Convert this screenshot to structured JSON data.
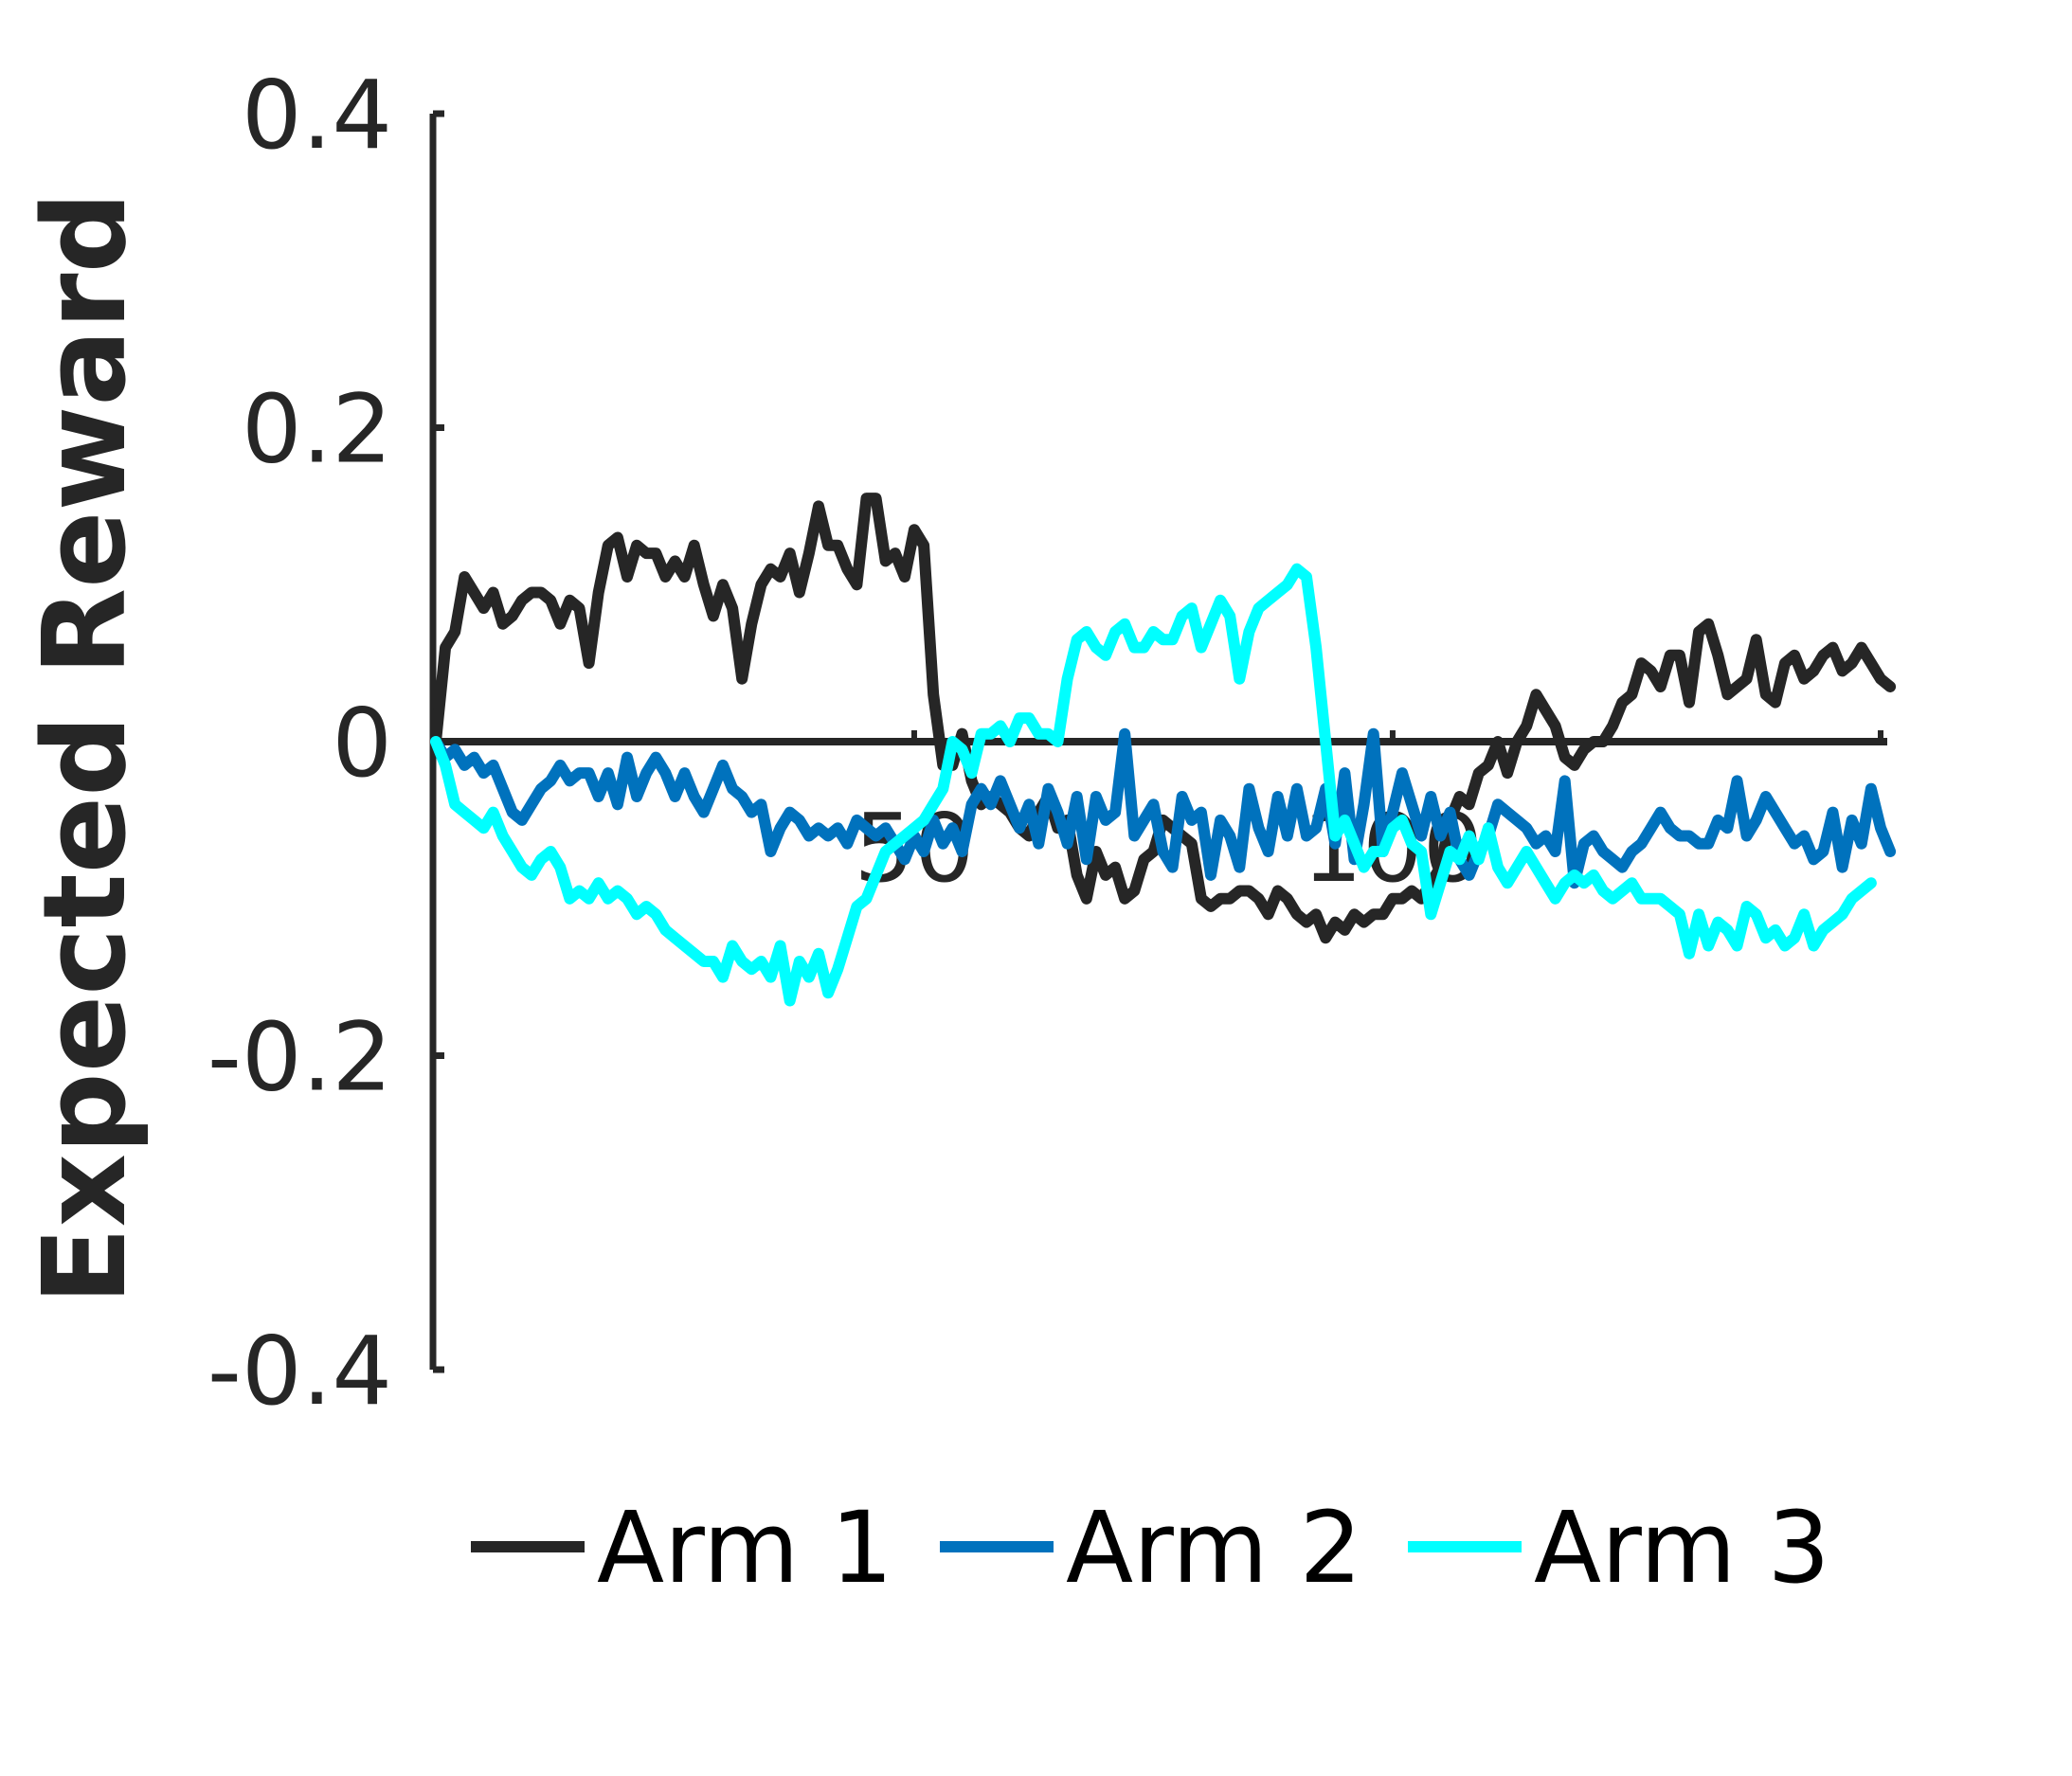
{
  "chart_data": {
    "type": "line",
    "ylabel": "Expected Reward",
    "xlabel": "",
    "xlim": [
      0,
      151
    ],
    "ylim": [
      -0.4,
      0.4
    ],
    "x_ticks": [
      0,
      50,
      100,
      151
    ],
    "x_tick_labels": [
      "",
      "50",
      "100",
      ""
    ],
    "y_ticks": [
      0.4,
      0.2,
      0,
      -0.2,
      -0.4
    ],
    "y_tick_labels": [
      "0.4",
      "0.2",
      "0",
      "-0.2",
      "-0.4"
    ],
    "zero_line": true,
    "grid": false,
    "legend_position": "bottom",
    "colors": {
      "axis": "#262626",
      "arm1": "#262626",
      "arm2": "#0072BD",
      "arm3": "#00FFFF"
    },
    "series": [
      {
        "name": "Arm 1",
        "color": "#262626",
        "y": [
          0,
          0.06,
          0.07,
          0.105,
          0.095,
          0.085,
          0.095,
          0.075,
          0.08,
          0.09,
          0.095,
          0.095,
          0.09,
          0.075,
          0.09,
          0.085,
          0.05,
          0.095,
          0.125,
          0.13,
          0.105,
          0.125,
          0.12,
          0.12,
          0.105,
          0.115,
          0.105,
          0.125,
          0.1,
          0.08,
          0.1,
          0.085,
          0.04,
          0.075,
          0.1,
          0.11,
          0.105,
          0.12,
          0.095,
          0.12,
          0.15,
          0.125,
          0.125,
          0.11,
          0.1,
          0.155,
          0.155,
          0.115,
          0.12,
          0.105,
          0.135,
          0.125,
          0.03,
          -0.015,
          -0.015,
          0.005,
          -0.025,
          -0.04,
          -0.035,
          -0.04,
          -0.045,
          -0.055,
          -0.06,
          -0.045,
          -0.035,
          -0.055,
          -0.05,
          -0.085,
          -0.1,
          -0.07,
          -0.085,
          -0.08,
          -0.1,
          -0.095,
          -0.075,
          -0.07,
          -0.05,
          -0.055,
          -0.06,
          -0.065,
          -0.1,
          -0.105,
          -0.1,
          -0.1,
          -0.095,
          -0.095,
          -0.1,
          -0.11,
          -0.095,
          -0.1,
          -0.11,
          -0.115,
          -0.11,
          -0.125,
          -0.115,
          -0.12,
          -0.11,
          -0.115,
          -0.11,
          -0.11,
          -0.1,
          -0.1,
          -0.095,
          -0.1,
          -0.09,
          -0.08,
          -0.05,
          -0.035,
          -0.04,
          -0.02,
          -0.015,
          0.0,
          -0.02,
          0.0,
          0.01,
          0.03,
          0.02,
          0.01,
          -0.01,
          -0.015,
          -0.005,
          0.0,
          0.0,
          0.01,
          0.025,
          0.03,
          0.05,
          0.045,
          0.035,
          0.055,
          0.055,
          0.025,
          0.07,
          0.075,
          0.055,
          0.03,
          0.035,
          0.04,
          0.065,
          0.03,
          0.025,
          0.05,
          0.055,
          0.04,
          0.045,
          0.055,
          0.06,
          0.045,
          0.05,
          0.06,
          0.05,
          0.04,
          0.035
        ]
      },
      {
        "name": "Arm 2",
        "color": "#0072BD",
        "y": [
          0,
          -0.01,
          -0.005,
          -0.015,
          -0.01,
          -0.02,
          -0.015,
          -0.03,
          -0.045,
          -0.05,
          -0.04,
          -0.03,
          -0.025,
          -0.015,
          -0.025,
          -0.02,
          -0.02,
          -0.035,
          -0.02,
          -0.04,
          -0.01,
          -0.035,
          -0.02,
          -0.01,
          -0.02,
          -0.035,
          -0.02,
          -0.035,
          -0.045,
          -0.03,
          -0.015,
          -0.03,
          -0.035,
          -0.045,
          -0.04,
          -0.07,
          -0.055,
          -0.045,
          -0.05,
          -0.06,
          -0.055,
          -0.06,
          -0.055,
          -0.065,
          -0.05,
          -0.055,
          -0.06,
          -0.055,
          -0.065,
          -0.075,
          -0.06,
          -0.07,
          -0.05,
          -0.065,
          -0.055,
          -0.07,
          -0.04,
          -0.03,
          -0.04,
          -0.025,
          -0.04,
          -0.055,
          -0.04,
          -0.065,
          -0.03,
          -0.045,
          -0.065,
          -0.035,
          -0.075,
          -0.035,
          -0.05,
          -0.045,
          0.005,
          -0.06,
          -0.05,
          -0.04,
          -0.07,
          -0.08,
          -0.035,
          -0.05,
          -0.045,
          -0.085,
          -0.05,
          -0.06,
          -0.08,
          -0.03,
          -0.055,
          -0.07,
          -0.035,
          -0.06,
          -0.03,
          -0.06,
          -0.055,
          -0.03,
          -0.065,
          -0.02,
          -0.075,
          -0.04,
          0.005,
          -0.07,
          -0.045,
          -0.02,
          -0.04,
          -0.06,
          -0.035,
          -0.06,
          -0.045,
          -0.075,
          -0.085,
          -0.07,
          -0.06,
          -0.04,
          -0.045,
          -0.05,
          -0.055,
          -0.065,
          -0.06,
          -0.07,
          -0.025,
          -0.09,
          -0.065,
          -0.06,
          -0.07,
          -0.075,
          -0.08,
          -0.07,
          -0.065,
          -0.055,
          -0.045,
          -0.055,
          -0.06,
          -0.06,
          -0.065,
          -0.065,
          -0.05,
          -0.055,
          -0.025,
          -0.06,
          -0.05,
          -0.035,
          -0.045,
          -0.055,
          -0.065,
          -0.06,
          -0.075,
          -0.07,
          -0.045,
          -0.08,
          -0.05,
          -0.065,
          -0.03,
          -0.055,
          -0.07
        ]
      },
      {
        "name": "Arm 3",
        "color": "#00FFFF",
        "y": [
          0,
          -0.015,
          -0.04,
          -0.045,
          -0.05,
          -0.055,
          -0.045,
          -0.06,
          -0.07,
          -0.08,
          -0.085,
          -0.075,
          -0.07,
          -0.08,
          -0.1,
          -0.095,
          -0.1,
          -0.09,
          -0.1,
          -0.095,
          -0.1,
          -0.11,
          -0.105,
          -0.11,
          -0.12,
          -0.125,
          -0.13,
          -0.135,
          -0.14,
          -0.14,
          -0.15,
          -0.13,
          -0.14,
          -0.145,
          -0.14,
          -0.15,
          -0.13,
          -0.165,
          -0.14,
          -0.15,
          -0.135,
          -0.16,
          -0.145,
          -0.125,
          -0.105,
          -0.1,
          -0.085,
          -0.07,
          -0.065,
          -0.06,
          -0.055,
          -0.05,
          -0.04,
          -0.03,
          0.0,
          -0.005,
          -0.02,
          0.005,
          0.005,
          0.01,
          0.0,
          0.015,
          0.015,
          0.005,
          0.005,
          0.0,
          0.04,
          0.065,
          0.07,
          0.06,
          0.055,
          0.07,
          0.075,
          0.06,
          0.06,
          0.07,
          0.065,
          0.065,
          0.08,
          0.085,
          0.06,
          0.075,
          0.09,
          0.08,
          0.04,
          0.07,
          0.085,
          0.09,
          0.095,
          0.1,
          0.11,
          0.105,
          0.06,
          0.0,
          -0.06,
          -0.05,
          -0.065,
          -0.08,
          -0.07,
          -0.07,
          -0.055,
          -0.05,
          -0.065,
          -0.07,
          -0.11,
          -0.09,
          -0.07,
          -0.075,
          -0.06,
          -0.075,
          -0.055,
          -0.08,
          -0.09,
          -0.08,
          -0.07,
          -0.08,
          -0.09,
          -0.1,
          -0.09,
          -0.085,
          -0.09,
          -0.085,
          -0.095,
          -0.1,
          -0.095,
          -0.09,
          -0.1,
          -0.1,
          -0.1,
          -0.105,
          -0.11,
          -0.135,
          -0.11,
          -0.13,
          -0.115,
          -0.12,
          -0.13,
          -0.105,
          -0.11,
          -0.125,
          -0.12,
          -0.13,
          -0.125,
          -0.11,
          -0.13,
          -0.12,
          -0.115,
          -0.11,
          -0.1,
          -0.095,
          -0.09
        ]
      }
    ]
  }
}
